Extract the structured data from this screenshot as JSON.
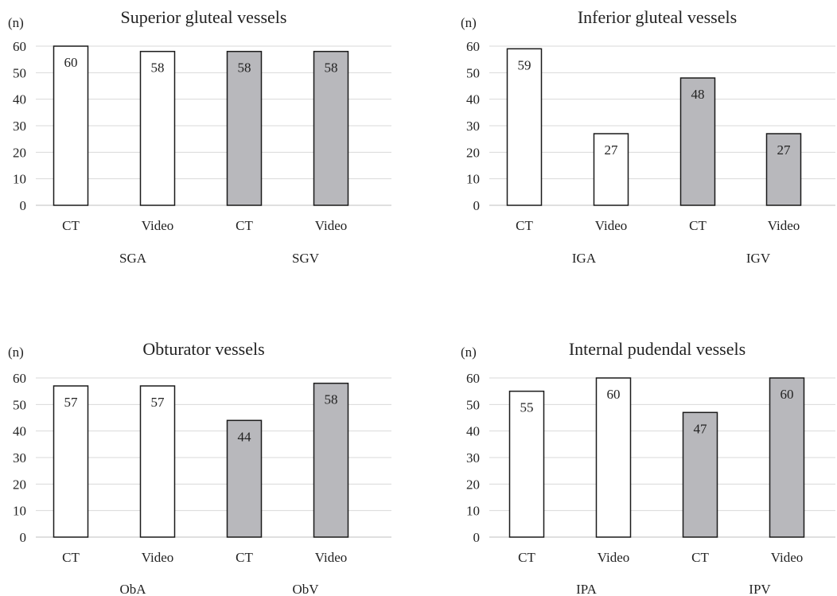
{
  "colors": {
    "white_bar": "#ffffff",
    "gray_bar": "#b8b8bc",
    "bar_stroke": "#1a1a1a",
    "gridline": "#d9d9d9",
    "text": "#222222"
  },
  "chart_data": [
    {
      "type": "bar",
      "title": "Superior gluteal vessels",
      "ylabel": "(n)",
      "ylim": [
        0,
        60
      ],
      "yticks": [
        "0",
        "10",
        "20",
        "30",
        "40",
        "50",
        "60"
      ],
      "grid": true,
      "categories": [
        "CT",
        "Video",
        "CT",
        "Video"
      ],
      "groups": [
        "SGA",
        "SGV"
      ],
      "values": [
        60,
        58,
        58,
        58
      ],
      "fills": [
        "white",
        "white",
        "gray",
        "gray"
      ],
      "value_labels": [
        "60",
        "58",
        "58",
        "58"
      ]
    },
    {
      "type": "bar",
      "title": "Inferior gluteal vessels",
      "ylabel": "(n)",
      "ylim": [
        0,
        60
      ],
      "yticks": [
        "0",
        "10",
        "20",
        "30",
        "40",
        "50",
        "60"
      ],
      "grid": true,
      "categories": [
        "CT",
        "Video",
        "CT",
        "Video"
      ],
      "groups": [
        "IGA",
        "IGV"
      ],
      "values": [
        59,
        27,
        48,
        27
      ],
      "fills": [
        "white",
        "white",
        "gray",
        "gray"
      ],
      "value_labels": [
        "59",
        "27",
        "48",
        "27"
      ]
    },
    {
      "type": "bar",
      "title": "Obturator vessels",
      "ylabel": "(n)",
      "ylim": [
        0,
        60
      ],
      "yticks": [
        "0",
        "10",
        "20",
        "30",
        "40",
        "50",
        "60"
      ],
      "grid": true,
      "categories": [
        "CT",
        "Video",
        "CT",
        "Video"
      ],
      "groups": [
        "ObA",
        "ObV"
      ],
      "values": [
        57,
        57,
        44,
        58
      ],
      "fills": [
        "white",
        "white",
        "gray",
        "gray"
      ],
      "value_labels": [
        "57",
        "57",
        "44",
        "58"
      ]
    },
    {
      "type": "bar",
      "title": "Internal pudendal vessels",
      "ylabel": "(n)",
      "ylim": [
        0,
        60
      ],
      "yticks": [
        "0",
        "10",
        "20",
        "30",
        "40",
        "50",
        "60"
      ],
      "grid": true,
      "categories": [
        "CT",
        "Video",
        "CT",
        "Video"
      ],
      "groups": [
        "IPA",
        "IPV"
      ],
      "values": [
        55,
        60,
        47,
        60
      ],
      "fills": [
        "white",
        "white",
        "gray",
        "gray"
      ],
      "value_labels": [
        "55",
        "60",
        "47",
        "60"
      ]
    }
  ]
}
